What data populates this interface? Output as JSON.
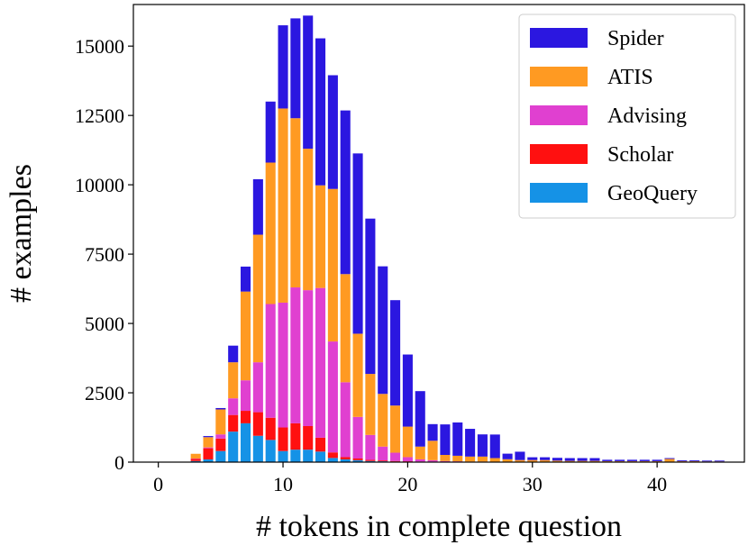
{
  "chart_data": {
    "type": "bar",
    "stacked": true,
    "title": "",
    "xlabel": "# tokens in complete question",
    "ylabel": "# examples",
    "xlim": [
      -2,
      47
    ],
    "ylim": [
      0,
      16500
    ],
    "xticks": [
      0,
      10,
      20,
      30,
      40
    ],
    "yticks": [
      0,
      2500,
      5000,
      7500,
      10000,
      12500,
      15000
    ],
    "legend_position": "top-right",
    "x": [
      3,
      4,
      5,
      6,
      7,
      8,
      9,
      10,
      11,
      12,
      13,
      14,
      15,
      16,
      17,
      18,
      19,
      20,
      21,
      22,
      23,
      24,
      25,
      26,
      27,
      28,
      29,
      30,
      31,
      32,
      33,
      34,
      35,
      36,
      37,
      38,
      39,
      40,
      41,
      42,
      43,
      44,
      45
    ],
    "series": [
      {
        "name": "GeoQuery",
        "color": "#1592E6",
        "values": [
          40,
          100,
          400,
          1100,
          1400,
          950,
          800,
          400,
          450,
          450,
          380,
          150,
          100,
          70,
          40,
          30,
          20,
          15,
          10,
          10,
          5,
          5,
          5,
          5,
          5,
          5,
          5,
          5,
          5,
          5,
          5,
          5,
          5,
          5,
          5,
          5,
          5,
          5,
          5,
          5,
          5,
          5,
          5
        ]
      },
      {
        "name": "Scholar",
        "color": "#FF1010",
        "values": [
          80,
          400,
          450,
          600,
          450,
          850,
          800,
          850,
          950,
          850,
          500,
          200,
          80,
          60,
          40,
          30,
          20,
          15,
          10,
          10,
          5,
          5,
          5,
          5,
          5,
          5,
          5,
          5,
          5,
          5,
          5,
          5,
          5,
          5,
          5,
          5,
          5,
          5,
          5,
          5,
          5,
          5,
          5
        ]
      },
      {
        "name": "Advising",
        "color": "#E040D0",
        "values": [
          10,
          30,
          150,
          600,
          1100,
          1800,
          4100,
          4500,
          4900,
          4900,
          5400,
          4000,
          2700,
          1500,
          900,
          500,
          300,
          150,
          80,
          50,
          30,
          20,
          10,
          10,
          5,
          5,
          5,
          5,
          5,
          5,
          5,
          5,
          5,
          5,
          5,
          5,
          5,
          5,
          5,
          5,
          5,
          5,
          5
        ]
      },
      {
        "name": "ATIS",
        "color": "#FF9A22",
        "values": [
          170,
          370,
          900,
          1300,
          3200,
          4600,
          5100,
          7000,
          6100,
          5100,
          3700,
          5500,
          3900,
          3000,
          2200,
          1900,
          1700,
          1100,
          460,
          700,
          220,
          200,
          180,
          180,
          130,
          90,
          60,
          60,
          60,
          40,
          30,
          30,
          30,
          20,
          20,
          20,
          20,
          20,
          100,
          20,
          20,
          10,
          10
        ]
      },
      {
        "name": "Spider",
        "color": "#2B17E0",
        "values": [
          0,
          40,
          50,
          600,
          900,
          2000,
          2200,
          3000,
          3600,
          4800,
          5300,
          4100,
          5900,
          6500,
          5600,
          4600,
          3800,
          2600,
          2000,
          600,
          1100,
          1200,
          1000,
          800,
          850,
          200,
          300,
          100,
          100,
          100,
          100,
          100,
          100,
          50,
          50,
          50,
          50,
          50,
          30,
          30,
          30,
          30,
          30
        ]
      }
    ]
  }
}
